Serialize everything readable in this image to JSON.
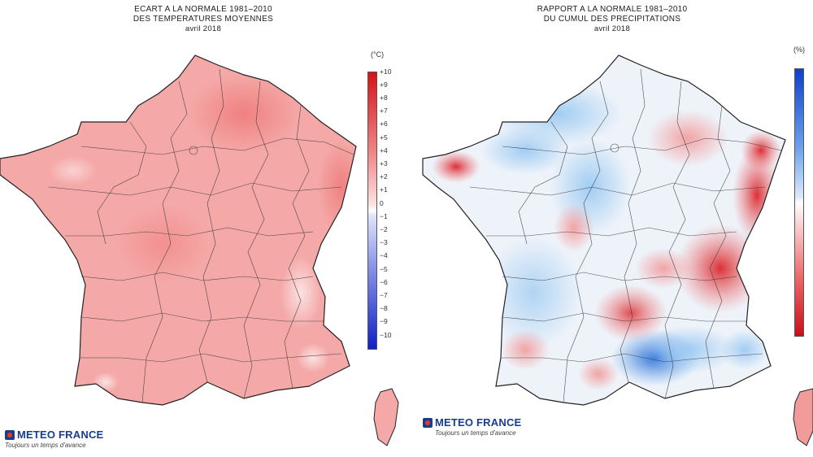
{
  "left_map": {
    "title_line1": "ECART A LA NORMALE 1981–2010",
    "title_line2": "DES TEMPERATURES MOYENNES",
    "period": "avril 2018",
    "unit": "(°C)",
    "scale_ticks": [
      "+10",
      "+9",
      "+8",
      "+7",
      "+6",
      "+5",
      "+4",
      "+3",
      "+2",
      "+1",
      "0",
      "−1",
      "−2",
      "−3",
      "−4",
      "−5",
      "−6",
      "−7",
      "−8",
      "−9",
      "−10"
    ],
    "scale_colors": {
      "top": "#d4141a",
      "mid": "#ffffff",
      "bottom": "#1020c8"
    },
    "fill_color": "#f4a9a8"
  },
  "right_map": {
    "title_line1": "RAPPORT A LA NORMALE 1981–2010",
    "title_line2": "DU CUMUL DES PRECIPITATIONS",
    "period": "avril 2018",
    "unit": "(%)",
    "scale_colors": {
      "top": "#1040c8",
      "mid": "#ffffff",
      "bottom": "#c8101a"
    }
  },
  "logo": {
    "name": "METEO FRANCE",
    "tagline": "Toujours un temps d'avance"
  }
}
